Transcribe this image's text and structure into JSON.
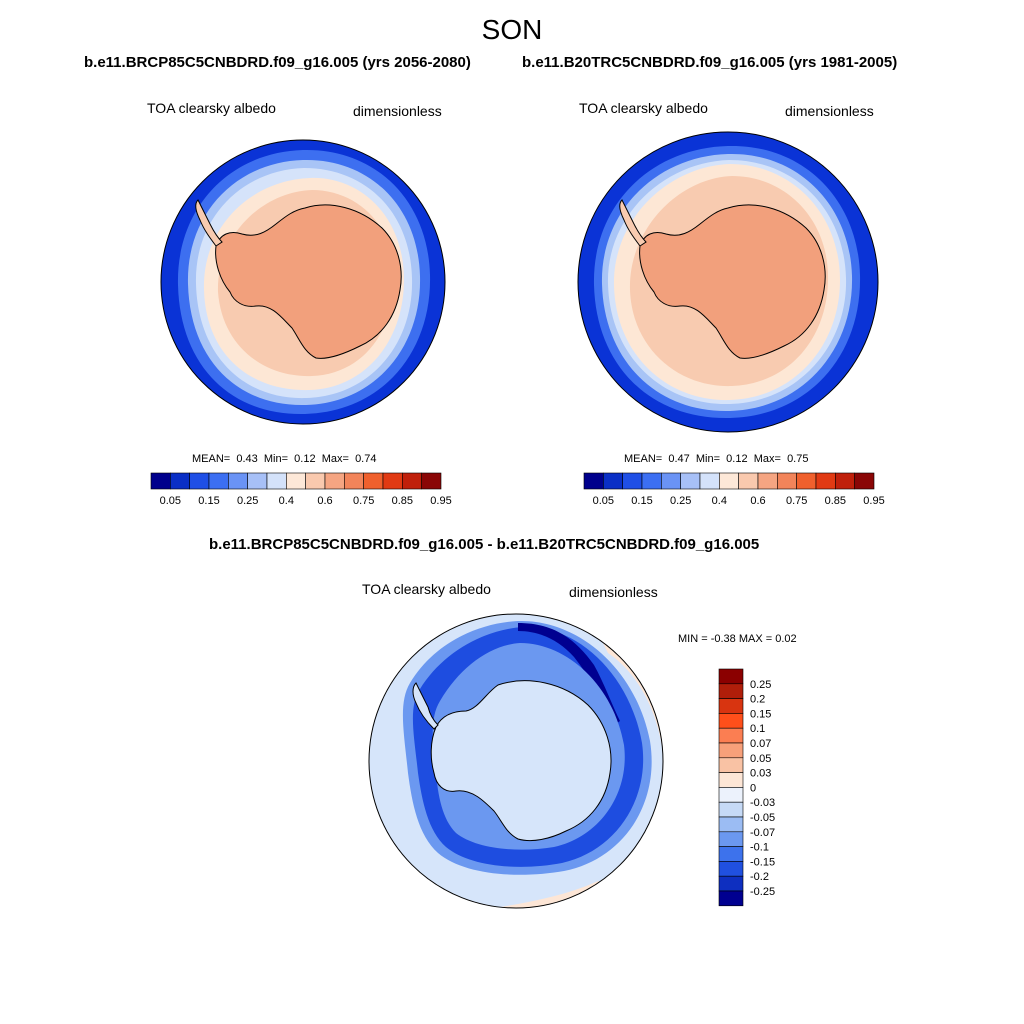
{
  "figure": {
    "title": "SON"
  },
  "panels": {
    "left": {
      "case_title": "b.e11.BRCP85C5CNBDRD.f09_g16.005 (yrs 2056-2080)",
      "variable": "TOA clearsky albedo",
      "units": "dimensionless",
      "stats": {
        "mean_label": "MEAN=",
        "mean": "0.43",
        "min_label": "Min=",
        "min": "0.12",
        "max_label": "Max=",
        "max": "0.74"
      }
    },
    "right": {
      "case_title": "b.e11.B20TRC5CNBDRD.f09_g16.005 (yrs 1981-2005)",
      "variable": "TOA clearsky albedo",
      "units": "dimensionless",
      "stats": {
        "mean_label": "MEAN=",
        "mean": "0.47",
        "min_label": "Min=",
        "min": "0.12",
        "max_label": "Max=",
        "max": "0.75"
      }
    },
    "diff": {
      "case_title": "b.e11.BRCP85C5CNBDRD.f09_g16.005 - b.e11.B20TRC5CNBDRD.f09_g16.005",
      "variable": "TOA clearsky albedo",
      "units": "dimensionless",
      "stats": {
        "text": "MIN =  -0.38 MAX =   0.02"
      }
    }
  },
  "colorbars": {
    "absolute": {
      "colors": [
        "#00008c",
        "#0a2fc6",
        "#1f4fe6",
        "#3c6ff2",
        "#6a93f5",
        "#a7c0f7",
        "#d4e2fa",
        "#fde8d8",
        "#f9c9ae",
        "#f5a582",
        "#f2845a",
        "#f0602d",
        "#e13a13",
        "#c0200b",
        "#8a0606"
      ],
      "ticks": [
        "0.05",
        "0.15",
        "0.25",
        "0.4",
        "0.6",
        "0.75",
        "0.85",
        "0.95"
      ],
      "tick_boundaries": [
        1,
        3,
        5,
        7,
        9,
        11,
        13,
        15
      ]
    },
    "difference": {
      "colors": [
        "#8b0000",
        "#b01e0a",
        "#d83410",
        "#ff4f1a",
        "#fb7e52",
        "#f7a07a",
        "#f9c2a4",
        "#fde6d6",
        "#ecf2fc",
        "#c6daf6",
        "#9bbcf3",
        "#6b98f0",
        "#3d72ec",
        "#2050e0",
        "#0e2fc0",
        "#000090"
      ],
      "ticks": [
        "0.25",
        "0.2",
        "0.15",
        "0.1",
        "0.07",
        "0.05",
        "0.03",
        "0",
        "-0.03",
        "-0.05",
        "-0.07",
        "-0.1",
        "-0.15",
        "-0.2",
        "-0.25"
      ]
    }
  },
  "chart_data": [
    {
      "type": "heatmap",
      "title": "b.e11.BRCP85C5CNBDRD.f09_g16.005 (yrs 2056-2080)",
      "field": "TOA clearsky albedo",
      "units": "dimensionless",
      "projection": "south polar stereographic",
      "season": "SON",
      "mean": 0.43,
      "min": 0.12,
      "max": 0.74,
      "levels": [
        0.05,
        0.1,
        0.15,
        0.2,
        0.25,
        0.3,
        0.4,
        0.5,
        0.6,
        0.7,
        0.75,
        0.8,
        0.85,
        0.9,
        0.95
      ]
    },
    {
      "type": "heatmap",
      "title": "b.e11.B20TRC5CNBDRD.f09_g16.005 (yrs 1981-2005)",
      "field": "TOA clearsky albedo",
      "units": "dimensionless",
      "projection": "south polar stereographic",
      "season": "SON",
      "mean": 0.47,
      "min": 0.12,
      "max": 0.75,
      "levels": [
        0.05,
        0.1,
        0.15,
        0.2,
        0.25,
        0.3,
        0.4,
        0.5,
        0.6,
        0.7,
        0.75,
        0.8,
        0.85,
        0.9,
        0.95
      ]
    },
    {
      "type": "heatmap",
      "title": "b.e11.BRCP85C5CNBDRD.f09_g16.005 - b.e11.B20TRC5CNBDRD.f09_g16.005",
      "field": "TOA clearsky albedo",
      "units": "dimensionless",
      "projection": "south polar stereographic",
      "season": "SON",
      "min": -0.38,
      "max": 0.02,
      "levels": [
        -0.25,
        -0.2,
        -0.15,
        -0.1,
        -0.07,
        -0.05,
        -0.03,
        0,
        0.03,
        0.05,
        0.07,
        0.1,
        0.15,
        0.2,
        0.25
      ]
    }
  ]
}
